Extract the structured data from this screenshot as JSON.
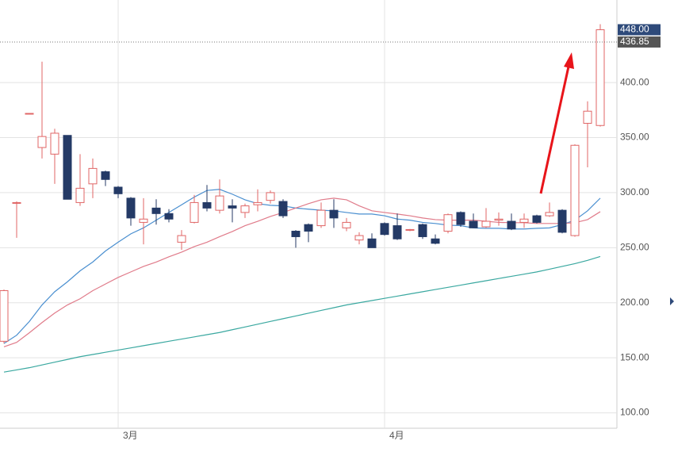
{
  "chart_data": {
    "type": "candlestick",
    "categories": [
      null,
      null,
      null,
      null,
      null,
      null,
      null,
      null,
      null,
      "3月",
      null,
      null,
      null,
      null,
      null,
      null,
      null,
      null,
      null,
      null,
      null,
      null,
      null,
      null,
      null,
      null,
      null,
      null,
      null,
      null,
      "4月",
      null,
      null,
      null,
      null,
      null,
      null,
      null,
      null,
      null,
      null,
      null,
      null,
      null,
      null,
      null,
      null,
      null
    ],
    "open": [
      165,
      291,
      372,
      341,
      335,
      352,
      291,
      308,
      319,
      305,
      295,
      273,
      286,
      281,
      255,
      273,
      291,
      284,
      288,
      282,
      289,
      293,
      292,
      265,
      271,
      270,
      284,
      268,
      257,
      258,
      272,
      270,
      266,
      271,
      258,
      265,
      282,
      274,
      269,
      275,
      274,
      273,
      279,
      279,
      284,
      261,
      363,
      361
    ],
    "high": [
      212,
      292,
      372,
      419,
      358,
      352,
      335,
      331,
      320,
      306,
      296,
      295,
      294,
      285,
      266,
      298,
      307,
      312,
      294,
      290,
      303,
      302,
      294,
      266,
      272,
      291,
      294,
      277,
      264,
      263,
      273,
      281,
      267,
      272,
      262,
      281,
      283,
      281,
      286,
      282,
      281,
      281,
      280,
      291,
      285,
      344,
      383,
      453
    ],
    "low": [
      163,
      259,
      372,
      331,
      308,
      294,
      288,
      295,
      306,
      295,
      270,
      253,
      271,
      273,
      248,
      272,
      283,
      281,
      273,
      277,
      283,
      290,
      277,
      250,
      255,
      268,
      268,
      265,
      253,
      250,
      261,
      257,
      265,
      258,
      253,
      263,
      269,
      268,
      268,
      270,
      266,
      268,
      272,
      278,
      263,
      260,
      323,
      360
    ],
    "close": [
      211,
      291,
      372,
      351,
      354,
      294,
      304,
      322,
      312,
      299,
      277,
      276,
      281,
      276,
      261,
      291,
      286,
      297,
      286,
      288,
      291,
      300,
      279,
      260,
      265,
      284,
      277,
      273,
      261,
      250,
      262,
      258,
      266.5,
      260,
      254,
      280,
      271,
      268,
      274,
      276,
      267,
      276,
      273,
      282,
      264,
      343,
      374,
      448
    ],
    "up_color": "#e06666",
    "down_color": "#243a66",
    "lines": [
      {
        "color": "#4a8fd0",
        "values": [
          163,
          170.5,
          183,
          198,
          210,
          219,
          229,
          237,
          247,
          255,
          262.6,
          268,
          275,
          282,
          289,
          296,
          302,
          303,
          298.6,
          293.5,
          290,
          288.5,
          288,
          286,
          285,
          284,
          283.5,
          282,
          280.6,
          280.6,
          279,
          276,
          275,
          273,
          272,
          270.5,
          270,
          268,
          267.6,
          267.6,
          267,
          267,
          267.6,
          268,
          271,
          275,
          283.5,
          295
        ]
      },
      {
        "color": "#e07b8a",
        "values": [
          160,
          164,
          172.7,
          182,
          190.6,
          198,
          203.6,
          211,
          217,
          223,
          228,
          233,
          237,
          241.7,
          246,
          251,
          255,
          260,
          264.7,
          270,
          274,
          278.4,
          282,
          286,
          290,
          293.5,
          295,
          293.5,
          288,
          283.5,
          282,
          280.6,
          279,
          277,
          275.5,
          275,
          275,
          275,
          274,
          273,
          272.7,
          272.7,
          272,
          272,
          272,
          272.7,
          275.5,
          282.7
        ]
      },
      {
        "color": "#3aa8a0",
        "values": [
          137,
          139,
          141,
          143.5,
          146,
          148.5,
          151,
          153,
          155,
          157,
          159,
          161,
          163,
          165,
          167,
          169,
          171,
          173,
          175.5,
          178,
          180.5,
          183,
          185.5,
          188,
          190.5,
          193,
          195.5,
          198,
          200,
          202,
          204,
          206,
          208,
          210,
          212,
          214,
          216,
          218,
          220,
          222,
          224,
          226,
          228,
          230.5,
          233,
          235.5,
          238.5,
          242
        ]
      }
    ],
    "ylim": [
      86,
      475
    ],
    "yticks": [
      {
        "value": 100,
        "label": "100.00"
      },
      {
        "value": 150,
        "label": "150.00"
      },
      {
        "value": 200,
        "label": "200.00"
      },
      {
        "value": 250,
        "label": "250.00"
      },
      {
        "value": 300,
        "label": "300.00"
      },
      {
        "value": 350,
        "label": "350.00"
      },
      {
        "value": 400,
        "label": "400.00"
      }
    ],
    "price_labels": [
      {
        "value": 448,
        "label": "448.00",
        "color": "#2e4a7a"
      },
      {
        "value": 436.85,
        "label": "436.85",
        "color": "#555555"
      }
    ],
    "grid": true
  }
}
